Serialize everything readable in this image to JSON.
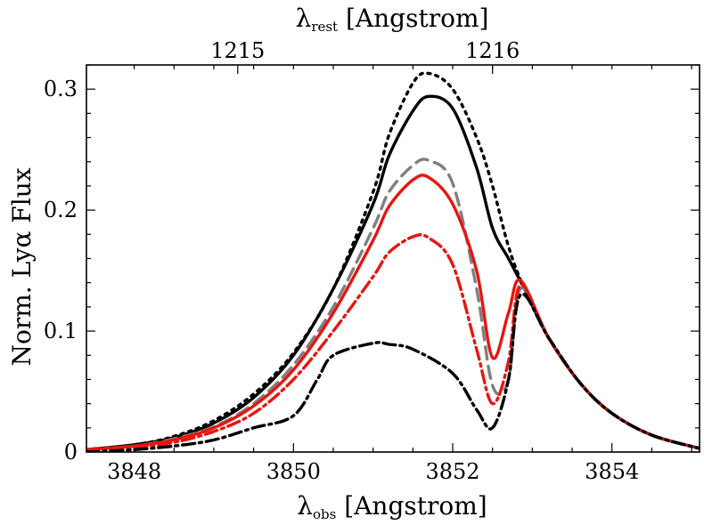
{
  "chart_data": {
    "type": "line",
    "xlabel": {
      "symbol": "λ",
      "sub": "obs",
      "text": " [Angstrom]"
    },
    "top_xlabel": {
      "symbol": "λ",
      "sub": "rest",
      "text": " [Angstrom]"
    },
    "ylabel": "Norm. Lyα Flux",
    "xlim": [
      3847.4,
      3855.1
    ],
    "ylim": [
      0,
      0.32
    ],
    "x_ticks": [
      3848,
      3850,
      3852,
      3854
    ],
    "y_ticks": [
      0,
      0.1,
      0.2,
      0.3
    ],
    "y_tick_labels": [
      "0",
      "0.1",
      "0.2",
      "0.3"
    ],
    "top_ticks": [
      {
        "label": "1215",
        "obs": 3849.3
      },
      {
        "label": "1216",
        "obs": 3852.5
      }
    ],
    "series": [
      {
        "name": "black dotted",
        "color": "#000000",
        "dash": "3,6",
        "points": [
          [
            3847.4,
            0.002
          ],
          [
            3848,
            0.006
          ],
          [
            3848.5,
            0.013
          ],
          [
            3849,
            0.026
          ],
          [
            3849.5,
            0.048
          ],
          [
            3850,
            0.082
          ],
          [
            3850.5,
            0.135
          ],
          [
            3851,
            0.215
          ],
          [
            3851.2,
            0.262
          ],
          [
            3851.5,
            0.305
          ],
          [
            3851.7,
            0.313
          ],
          [
            3852,
            0.3
          ],
          [
            3852.3,
            0.26
          ],
          [
            3852.5,
            0.22
          ],
          [
            3852.7,
            0.17
          ],
          [
            3852.9,
            0.135
          ],
          [
            3853.2,
            0.095
          ],
          [
            3853.6,
            0.057
          ],
          [
            3854,
            0.032
          ],
          [
            3854.5,
            0.014
          ],
          [
            3855.1,
            0.003
          ]
        ]
      },
      {
        "name": "black solid",
        "color": "#000000",
        "dash": "",
        "points": [
          [
            3847.4,
            0.002
          ],
          [
            3848,
            0.006
          ],
          [
            3848.5,
            0.012
          ],
          [
            3849,
            0.024
          ],
          [
            3849.5,
            0.045
          ],
          [
            3850,
            0.08
          ],
          [
            3850.5,
            0.135
          ],
          [
            3851,
            0.205
          ],
          [
            3851.2,
            0.245
          ],
          [
            3851.5,
            0.282
          ],
          [
            3851.7,
            0.294
          ],
          [
            3852,
            0.284
          ],
          [
            3852.3,
            0.235
          ],
          [
            3852.5,
            0.185
          ],
          [
            3852.7,
            0.16
          ],
          [
            3852.9,
            0.135
          ],
          [
            3853.2,
            0.095
          ],
          [
            3853.6,
            0.057
          ],
          [
            3854,
            0.032
          ],
          [
            3854.5,
            0.014
          ],
          [
            3855.1,
            0.003
          ]
        ]
      },
      {
        "name": "gray dashed",
        "color": "#7f7f7f",
        "dash": "14,8",
        "points": [
          [
            3847.4,
            0.002
          ],
          [
            3848,
            0.005
          ],
          [
            3848.5,
            0.011
          ],
          [
            3849,
            0.021
          ],
          [
            3849.5,
            0.04
          ],
          [
            3850,
            0.072
          ],
          [
            3850.5,
            0.12
          ],
          [
            3851,
            0.185
          ],
          [
            3851.2,
            0.215
          ],
          [
            3851.5,
            0.237
          ],
          [
            3851.7,
            0.241
          ],
          [
            3852,
            0.222
          ],
          [
            3852.3,
            0.135
          ],
          [
            3852.5,
            0.055
          ],
          [
            3852.7,
            0.06
          ],
          [
            3852.85,
            0.135
          ],
          [
            3853.2,
            0.095
          ],
          [
            3853.6,
            0.057
          ],
          [
            3854,
            0.032
          ],
          [
            3854.5,
            0.014
          ],
          [
            3855.1,
            0.003
          ]
        ]
      },
      {
        "name": "red solid",
        "color": "#e8150f",
        "dash": "",
        "points": [
          [
            3847.4,
            0.002
          ],
          [
            3848,
            0.005
          ],
          [
            3848.5,
            0.01
          ],
          [
            3849,
            0.02
          ],
          [
            3849.5,
            0.038
          ],
          [
            3850,
            0.068
          ],
          [
            3850.5,
            0.115
          ],
          [
            3851,
            0.175
          ],
          [
            3851.2,
            0.203
          ],
          [
            3851.5,
            0.225
          ],
          [
            3851.7,
            0.227
          ],
          [
            3852,
            0.205
          ],
          [
            3852.3,
            0.15
          ],
          [
            3852.5,
            0.078
          ],
          [
            3852.7,
            0.115
          ],
          [
            3852.85,
            0.142
          ],
          [
            3853.2,
            0.095
          ],
          [
            3853.6,
            0.057
          ],
          [
            3854,
            0.032
          ],
          [
            3854.5,
            0.014
          ],
          [
            3855.1,
            0.003
          ]
        ]
      },
      {
        "name": "red dash-dot",
        "color": "#e8150f",
        "dash": "14,5,3,5",
        "points": [
          [
            3847.4,
            0.002
          ],
          [
            3848,
            0.004
          ],
          [
            3848.5,
            0.008
          ],
          [
            3849,
            0.017
          ],
          [
            3849.5,
            0.032
          ],
          [
            3850,
            0.06
          ],
          [
            3850.5,
            0.1
          ],
          [
            3851,
            0.145
          ],
          [
            3851.2,
            0.165
          ],
          [
            3851.5,
            0.178
          ],
          [
            3851.7,
            0.177
          ],
          [
            3852,
            0.155
          ],
          [
            3852.3,
            0.085
          ],
          [
            3852.5,
            0.04
          ],
          [
            3852.7,
            0.075
          ],
          [
            3852.85,
            0.138
          ],
          [
            3853.2,
            0.095
          ],
          [
            3853.6,
            0.057
          ],
          [
            3854,
            0.032
          ],
          [
            3854.5,
            0.014
          ],
          [
            3855.1,
            0.003
          ]
        ]
      },
      {
        "name": "black dash-dot",
        "color": "#000000",
        "dash": "14,5,3,5",
        "points": [
          [
            3847.4,
            0.0
          ],
          [
            3848,
            0.002
          ],
          [
            3848.5,
            0.005
          ],
          [
            3849,
            0.01
          ],
          [
            3849.5,
            0.02
          ],
          [
            3850,
            0.03
          ],
          [
            3850.3,
            0.06
          ],
          [
            3850.5,
            0.08
          ],
          [
            3851,
            0.09
          ],
          [
            3851.2,
            0.089
          ],
          [
            3851.5,
            0.085
          ],
          [
            3852,
            0.065
          ],
          [
            3852.3,
            0.035
          ],
          [
            3852.5,
            0.02
          ],
          [
            3852.7,
            0.06
          ],
          [
            3852.85,
            0.13
          ],
          [
            3853.2,
            0.095
          ],
          [
            3853.6,
            0.057
          ],
          [
            3854,
            0.032
          ],
          [
            3854.5,
            0.014
          ],
          [
            3855.1,
            0.003
          ]
        ]
      }
    ]
  }
}
